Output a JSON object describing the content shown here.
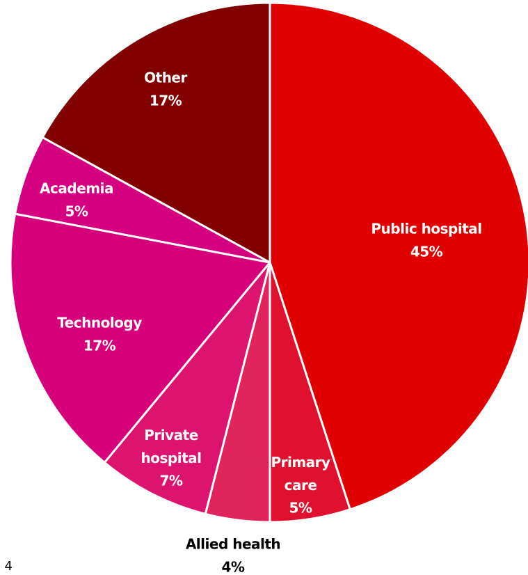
{
  "chart_data": {
    "type": "pie",
    "categories": [
      "Public hospital",
      "Primary care",
      "Allied health",
      "Private hospital",
      "Technology",
      "Academia",
      "Other"
    ],
    "values": [
      45,
      5,
      4,
      7,
      17,
      5,
      17
    ],
    "value_labels": [
      "45%",
      "5%",
      "4%",
      "7%",
      "17%",
      "5%",
      "17%"
    ],
    "colors": [
      "#e00000",
      "#e0112f",
      "#e0245c",
      "#dc1470",
      "#d6007a",
      "#d4007f",
      "#800000"
    ]
  },
  "page_number": "4"
}
